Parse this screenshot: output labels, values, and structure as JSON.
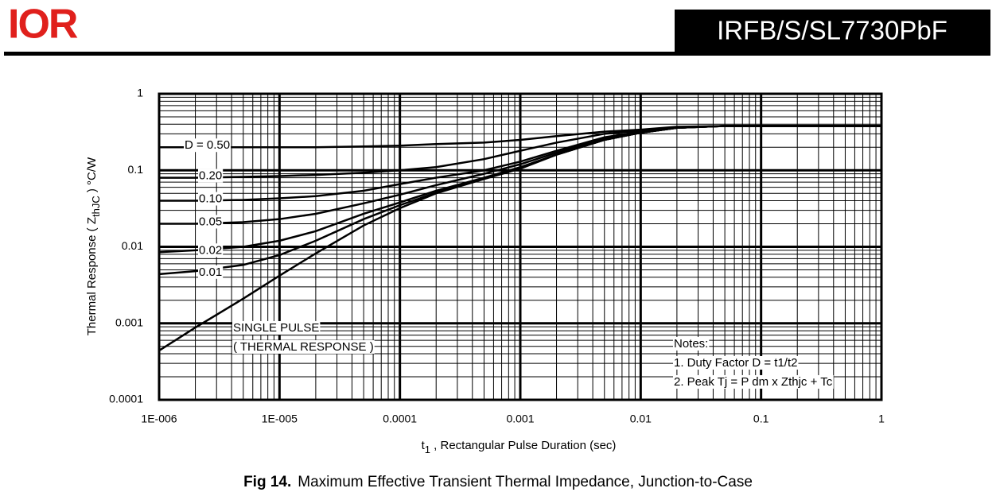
{
  "header": {
    "logo": "IOR",
    "part_number": "IRFB/S/SL7730PbF"
  },
  "chart_data": {
    "type": "line",
    "ylabel": {
      "text": "Thermal Response ( Z",
      "sub": "thJC",
      "rest": " ) °C/W"
    },
    "xlabel": {
      "text": "t",
      "sub": "1",
      "rest": " , Rectangular Pulse Duration (sec)"
    },
    "log_x": true,
    "log_y": true,
    "grid": true,
    "minor_grid": true,
    "xlim": [
      1e-06,
      1
    ],
    "ylim": [
      0.0001,
      1
    ],
    "xticks": [
      {
        "value": 1e-06,
        "label": "1E-006"
      },
      {
        "value": 1e-05,
        "label": "1E-005"
      },
      0.0001,
      0.001,
      0.01,
      0.1,
      1
    ],
    "yticks": [
      0.0001,
      0.001,
      0.01,
      0.1,
      1
    ],
    "x": [
      1e-06,
      2e-06,
      5e-06,
      1e-05,
      2e-05,
      5e-05,
      0.0001,
      0.0002,
      0.0005,
      0.001,
      0.002,
      0.005,
      0.01,
      0.02,
      0.05,
      0.1,
      1
    ],
    "series": [
      {
        "name": "D = 0.50",
        "color": "#000000",
        "values": [
          0.2,
          0.2,
          0.2,
          0.2,
          0.2,
          0.205,
          0.21,
          0.22,
          0.23,
          0.25,
          0.28,
          0.32,
          0.34,
          0.37,
          0.38,
          0.38,
          0.38
        ]
      },
      {
        "name": "0.20",
        "color": "#000000",
        "values": [
          0.08,
          0.08,
          0.082,
          0.084,
          0.087,
          0.093,
          0.1,
          0.11,
          0.14,
          0.18,
          0.23,
          0.3,
          0.33,
          0.36,
          0.38,
          0.38,
          0.38
        ]
      },
      {
        "name": "0.10",
        "color": "#000000",
        "values": [
          0.04,
          0.04,
          0.041,
          0.043,
          0.046,
          0.054,
          0.066,
          0.08,
          0.1,
          0.13,
          0.18,
          0.27,
          0.32,
          0.36,
          0.38,
          0.38,
          0.38
        ]
      },
      {
        "name": "0.05",
        "color": "#000000",
        "values": [
          0.02,
          0.02,
          0.021,
          0.023,
          0.027,
          0.037,
          0.048,
          0.064,
          0.09,
          0.12,
          0.17,
          0.26,
          0.31,
          0.36,
          0.38,
          0.38,
          0.38
        ]
      },
      {
        "name": "0.02",
        "color": "#000000",
        "values": [
          0.0085,
          0.009,
          0.01,
          0.012,
          0.016,
          0.027,
          0.038,
          0.054,
          0.08,
          0.11,
          0.16,
          0.25,
          0.31,
          0.36,
          0.38,
          0.38,
          0.38
        ]
      },
      {
        "name": "0.01",
        "color": "#000000",
        "values": [
          0.0044,
          0.0048,
          0.0058,
          0.0078,
          0.012,
          0.023,
          0.035,
          0.051,
          0.078,
          0.108,
          0.16,
          0.25,
          0.31,
          0.36,
          0.38,
          0.38,
          0.38
        ]
      },
      {
        "name": "SINGLE PULSE",
        "color": "#000000",
        "values": [
          0.00044,
          0.00088,
          0.0021,
          0.0042,
          0.0082,
          0.019,
          0.032,
          0.05,
          0.077,
          0.105,
          0.16,
          0.25,
          0.31,
          0.36,
          0.38,
          0.38,
          0.38
        ]
      }
    ],
    "annotation": "( THERMAL RESPONSE )",
    "notes": [
      "Notes:",
      "1. Duty Factor D = t1/t2",
      "2. Peak Tj = P dm x Zthjc + Tc"
    ]
  },
  "caption": {
    "label": "Fig 14.",
    "text": "Maximum Effective Transient Thermal Impedance, Junction-to-Case"
  }
}
